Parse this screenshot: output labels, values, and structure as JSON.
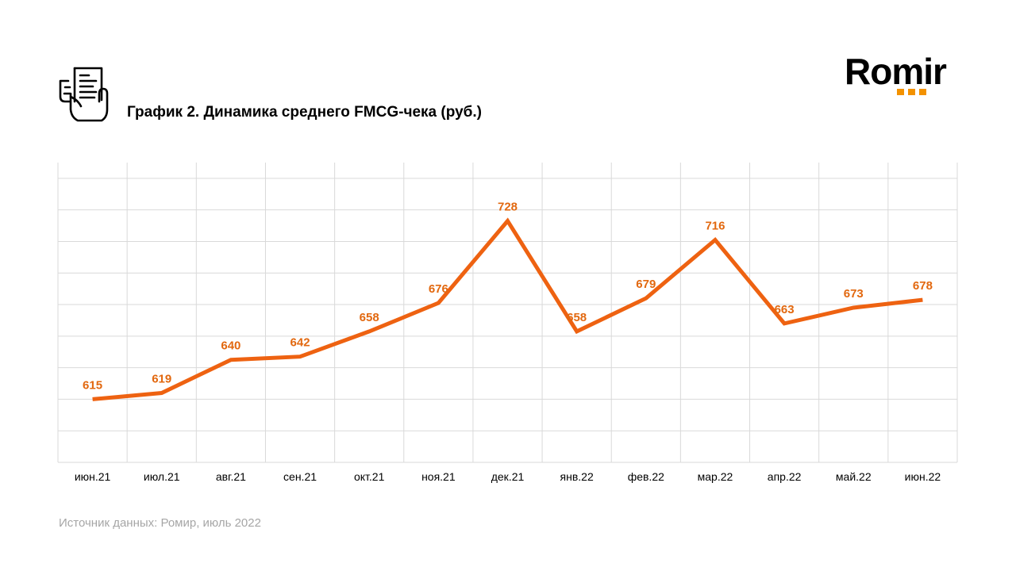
{
  "title": "График 2. Динамика среднего FMCG-чека (руб.)",
  "source": "Источник данных: Ромир, июль 2022",
  "logo": {
    "text": "Romir",
    "dot_color": "#f39200"
  },
  "icon": "receipt-hand-icon",
  "colors": {
    "line": "#ee6211",
    "labels": "#e2680f",
    "grid": "#d9d9d9"
  },
  "chart_data": {
    "type": "line",
    "categories": [
      "июн.21",
      "июл.21",
      "авг.21",
      "сен.21",
      "окт.21",
      "ноя.21",
      "дек.21",
      "янв.22",
      "фев.22",
      "мар.22",
      "апр.22",
      "май.22",
      "июн.22"
    ],
    "series": [
      {
        "values": [
          615,
          619,
          640,
          642,
          658,
          676,
          728,
          658,
          679,
          716,
          663,
          673,
          678
        ]
      }
    ],
    "title": "График 2. Динамика среднего FMCG-чека (руб.)",
    "xlabel": "",
    "ylabel": "",
    "ylim": [
      575,
      765
    ],
    "grid": true,
    "legend": "none"
  }
}
